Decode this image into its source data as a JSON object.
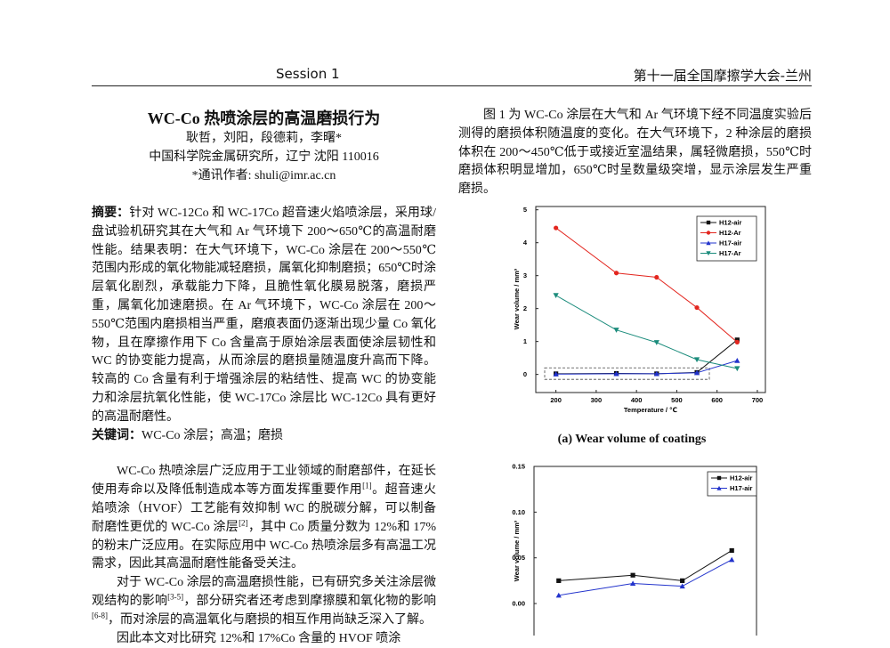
{
  "header": {
    "session": "Session 1",
    "conference": "第十一届全国摩擦学大会-兰州"
  },
  "paper": {
    "title": "WC-Co 热喷涂层的高温磨损行为",
    "authors": "耿哲，刘阳，段德莉，李曙*",
    "affiliation": "中国科学院金属研究所，辽宁 沈阳 110016",
    "contact": "*通讯作者: shuli@imr.ac.cn",
    "abstract_label": "摘要：",
    "abstract": "针对 WC-12Co 和 WC-17Co 超音速火焰喷涂层，采用球/盘试验机研究其在大气和 Ar 气环境下 200～650℃的高温耐磨性能。结果表明：在大气环境下，WC-Co 涂层在 200～550℃范围内形成的氧化物能减轻磨损，属氧化抑制磨损；650℃时涂层氧化剧烈，承载能力下降，且脆性氧化膜易脱落，磨损严重，属氧化加速磨损。在 Ar 气环境下，WC-Co 涂层在 200～550℃范围内磨损相当严重，磨痕表面仍逐渐出现少量 Co 氧化物，且在摩擦作用下 Co 含量高于原始涂层表面使涂层韧性和 WC 的协变能力提高，从而涂层的磨损量随温度升高而下降。较高的 Co 含量有利于增强涂层的粘结性、提高 WC 的协变能力和涂层抗氧化性能，使 WC-17Co 涂层比 WC-12Co 具有更好的高温耐磨性。",
    "keywords_label": "关键词：",
    "keywords": "WC-Co 涂层；高温；磨损",
    "intro1": [
      "WC-Co 热喷涂层广泛应用于工业领域的耐磨部件，在延长使用寿命以及降低制造成本等方面发挥重要作用",
      "[1]",
      "。超音速火焰喷涂（HVOF）工艺能有效抑制 WC 的脱碳分解，可以制备耐磨性更优的 WC-Co 涂层",
      "[2]",
      "，其中 Co 质量分数为 12%和 17%的粉末广泛应用。在实际应用中 WC-Co 热喷涂层多有高温工况需求，因此其高温耐磨性能备受关注。"
    ],
    "intro2": [
      "对于 WC-Co 涂层的高温磨损性能，已有研究多关注涂层微观结构的影响",
      "[3-5]",
      "，部分研究者还考虑到摩擦膜和氧化物的影响",
      "[6-8]",
      "，而对涂层的高温氧化与磨损的相互作用尚缺乏深入了解。"
    ],
    "intro3": "因此本文对比研究 12%和 17%Co 含量的 HVOF 喷涂",
    "right_para": "图 1 为 WC-Co 涂层在大气和 Ar 气环境下经不同温度实验后测得的磨损体积随温度的变化。在大气环境下，2 种涂层的磨损体积在 200～450℃低于或接近室温结果，属轻微磨损，550℃时磨损体积明显增加，650℃时呈数量级突增，显示涂层发生严重磨损。",
    "figure_caption": "(a) Wear volume of coatings"
  },
  "chart_data": [
    {
      "type": "line",
      "x_label": "Temperature / ℃",
      "y_label": "Wear volume / mm³",
      "x": [
        200,
        350,
        450,
        550,
        650
      ],
      "xlim": [
        150,
        720
      ],
      "xticks": [
        200,
        300,
        400,
        500,
        600,
        700
      ],
      "ylim": [
        -0.55,
        5.1
      ],
      "yticks": [
        0,
        1,
        2,
        3,
        4,
        5
      ],
      "series": [
        {
          "name": "H12-air",
          "color": "#111111",
          "marker": "square",
          "values": [
            0.02,
            0.03,
            0.02,
            0.06,
            1.05
          ]
        },
        {
          "name": "H12-Ar",
          "color": "#e3261f",
          "marker": "circle",
          "values": [
            4.45,
            3.08,
            2.95,
            2.03,
            0.98
          ]
        },
        {
          "name": "H17-air",
          "color": "#2233cc",
          "marker": "triangle-up",
          "values": [
            0.01,
            0.02,
            0.02,
            0.05,
            0.42
          ]
        },
        {
          "name": "H17-Ar",
          "color": "#1b8c7c",
          "marker": "triangle-down",
          "values": [
            2.4,
            1.35,
            0.97,
            0.45,
            0.18
          ]
        }
      ]
    },
    {
      "type": "line",
      "y_label": "Wear volume / mm³",
      "x": [
        200,
        350,
        450,
        550
      ],
      "xlim": [
        150,
        600
      ],
      "ylim": [
        -0.035,
        0.15
      ],
      "yticks": [
        {
          "value": 0,
          "label": "0.00"
        },
        {
          "value": 0.05,
          "label": "0.05"
        },
        {
          "value": 0.1,
          "label": "0.10"
        },
        {
          "value": 0.15,
          "label": "0.15"
        }
      ],
      "series": [
        {
          "name": "H12-air",
          "color": "#111111",
          "marker": "square",
          "values": [
            0.025,
            0.031,
            0.025,
            0.058
          ]
        },
        {
          "name": "H17-air",
          "color": "#2233cc",
          "marker": "triangle-up",
          "values": [
            0.009,
            0.022,
            0.019,
            0.048
          ]
        }
      ]
    }
  ]
}
